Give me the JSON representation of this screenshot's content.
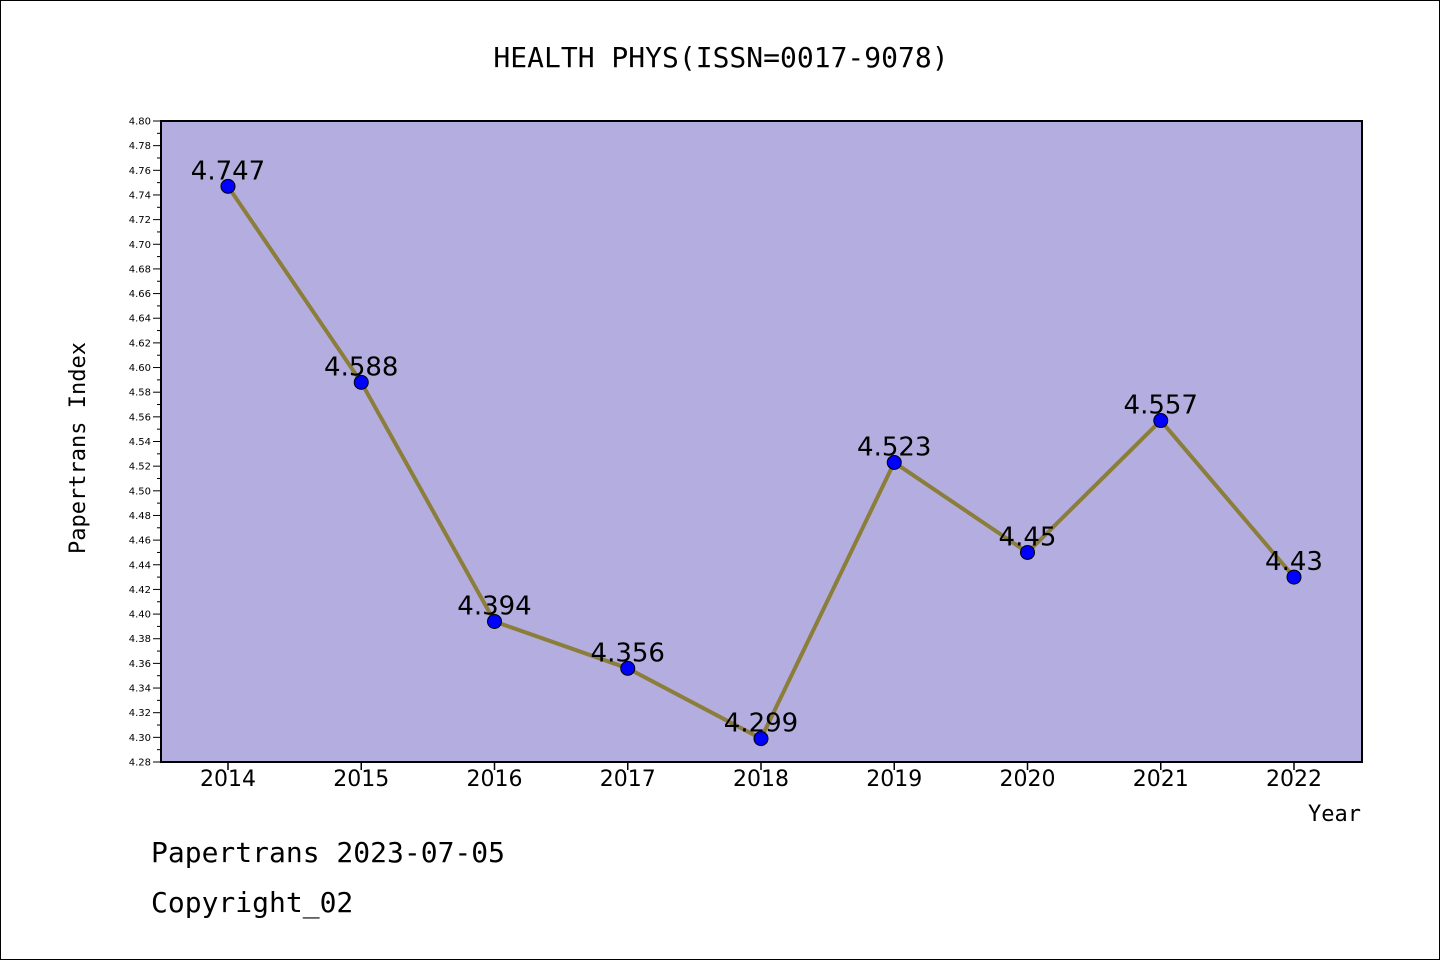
{
  "chart_data": {
    "type": "line",
    "title": "HEALTH PHYS(ISSN=0017-9078)",
    "xlabel": "Year",
    "ylabel": "Papertrans Index",
    "categories": [
      "2014",
      "2015",
      "2016",
      "2017",
      "2018",
      "2019",
      "2020",
      "2021",
      "2022"
    ],
    "series": [
      {
        "values": [
          4.747,
          4.588,
          4.394,
          4.356,
          4.299,
          4.523,
          4.45,
          4.557,
          4.43
        ],
        "labels": [
          "4.747",
          "4.588",
          "4.394",
          "4.356",
          "4.299",
          "4.523",
          "4.45",
          "4.557",
          "4.43"
        ]
      }
    ],
    "ylim": [
      4.28,
      4.8
    ],
    "yticks": [
      "4.28",
      "4.30",
      "4.32",
      "4.34",
      "4.36",
      "4.38",
      "4.40",
      "4.42",
      "4.44",
      "4.46",
      "4.48",
      "4.50",
      "4.52",
      "4.54",
      "4.56",
      "4.58",
      "4.60",
      "4.62",
      "4.64",
      "4.66",
      "4.68",
      "4.70",
      "4.72",
      "4.74",
      "4.76",
      "4.78",
      "4.80"
    ],
    "grid": false,
    "colors": {
      "plot_background": "#b4aee0",
      "line": "#8b7d3a",
      "marker": "#0000ff"
    }
  },
  "footer": {
    "line1": "Papertrans 2023-07-05",
    "line2": "Copyright_02"
  }
}
